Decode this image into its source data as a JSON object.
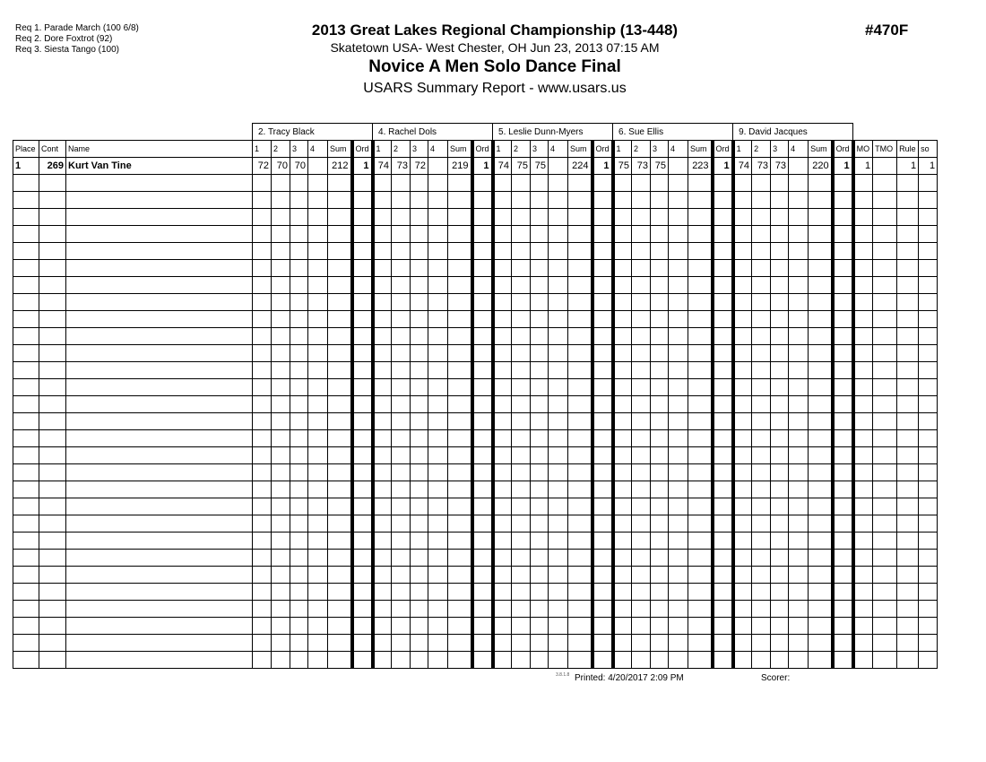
{
  "requirements": [
    "Req  1.  Parade March (100 6/8)",
    "Req  2.  Dore Foxtrot (92)",
    "Req  3.  Siesta Tango (100)"
  ],
  "header": {
    "title": "2013 Great Lakes Regional Championship (13-448)",
    "location": "Skatetown USA- West Chester, OH  Jun 23, 2013  07:15 AM",
    "event": "Novice A Men Solo Dance Final",
    "report": "USARS Summary Report - www.usars.us",
    "event_number": "#470F"
  },
  "columns": {
    "place": "Place",
    "cont": "Cont",
    "name": "Name",
    "judge_cols": [
      "1",
      "2",
      "3",
      "4",
      "Sum",
      "Ord"
    ],
    "tail": [
      "MO",
      "TMO",
      "Rule",
      "so"
    ]
  },
  "judges": [
    "2.  Tracy Black",
    "4.  Rachel  Dols",
    "5.  Leslie Dunn-Myers",
    "6.  Sue Ellis",
    "9.  David  Jacques"
  ],
  "rows": [
    {
      "place": "1",
      "cont": "269",
      "name": "Kurt Van Tine",
      "scores": [
        [
          "72",
          "70",
          "70",
          "",
          "212",
          "1"
        ],
        [
          "74",
          "73",
          "72",
          "",
          "219",
          "1"
        ],
        [
          "74",
          "75",
          "75",
          "",
          "224",
          "1"
        ],
        [
          "75",
          "73",
          "75",
          "",
          "223",
          "1"
        ],
        [
          "74",
          "73",
          "73",
          "",
          "220",
          "1"
        ]
      ],
      "tail": [
        "1",
        "",
        "1",
        "1"
      ]
    }
  ],
  "footer": {
    "version": "3.8.1.8",
    "printed": "Printed:  4/20/2017  2:09 PM",
    "scorer": "Scorer:"
  }
}
